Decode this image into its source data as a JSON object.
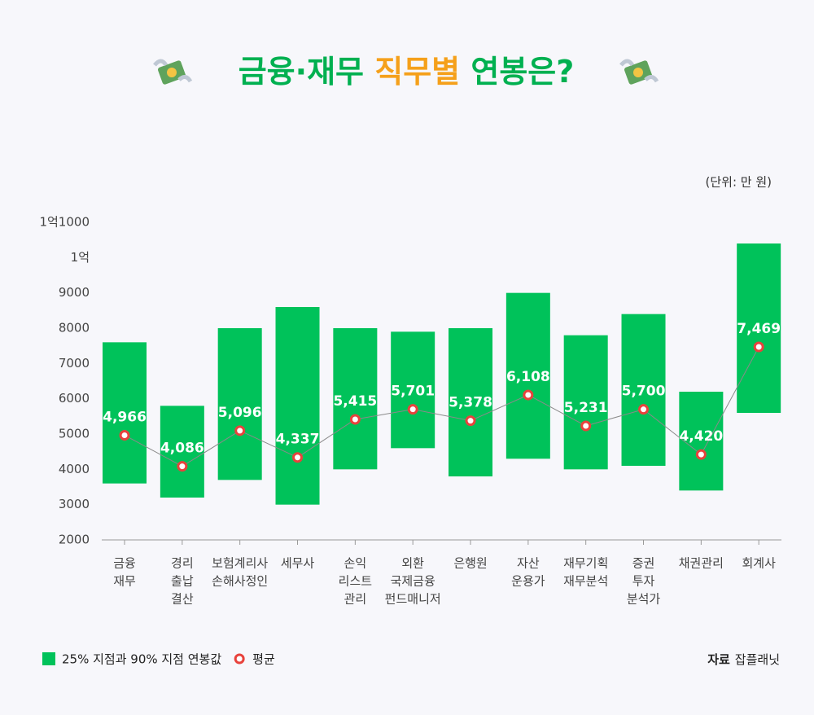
{
  "chart_data": {
    "type": "floating_bar",
    "title": [
      "금융·재무 ",
      "직무별",
      " 연봉은?"
    ],
    "unit_note": "(단위: 만 원)",
    "source": [
      "자료",
      "잡플래닛"
    ],
    "categories": [
      [
        "금융",
        "재무"
      ],
      [
        "경리",
        "출납",
        "결산"
      ],
      [
        "보험계리사",
        "손해사정인"
      ],
      [
        "세무사"
      ],
      [
        "손익",
        "리스트",
        "관리"
      ],
      [
        "외환",
        "국제금융",
        "펀드매니저"
      ],
      [
        "은행원"
      ],
      [
        "자산",
        "운용가"
      ],
      [
        "재무기획",
        "재무분석"
      ],
      [
        "증권",
        "투자",
        "분석가"
      ],
      [
        "채권관리"
      ],
      [
        "회계사"
      ]
    ],
    "series": [
      {
        "name": "25% 지점과 90% 지점 연봉값",
        "color": "#00c25a",
        "low": [
          3600,
          3200,
          3700,
          3000,
          4000,
          4600,
          3800,
          4300,
          4000,
          4100,
          3400,
          5600
        ],
        "high": [
          7600,
          5800,
          8000,
          8600,
          8000,
          7900,
          8000,
          9000,
          7800,
          8400,
          6200,
          10400
        ]
      },
      {
        "name": "평균",
        "color": "#e8423c",
        "values": [
          4966,
          4086,
          5096,
          4337,
          5415,
          5701,
          5378,
          6108,
          5231,
          5700,
          4420,
          7469
        ],
        "value_labels": [
          "4,966",
          "4,086",
          "5,096",
          "4,337",
          "5,415",
          "5,701",
          "5,378",
          "6,108",
          "5,231",
          "5,700",
          "4,420",
          "7,469"
        ]
      }
    ],
    "ylim": [
      2000,
      11000
    ],
    "yticks": [
      2000,
      3000,
      4000,
      5000,
      6000,
      7000,
      8000,
      9000,
      {
        "value": 10000,
        "label": "1억"
      },
      {
        "value": 11000,
        "label": "1억1000"
      }
    ]
  }
}
